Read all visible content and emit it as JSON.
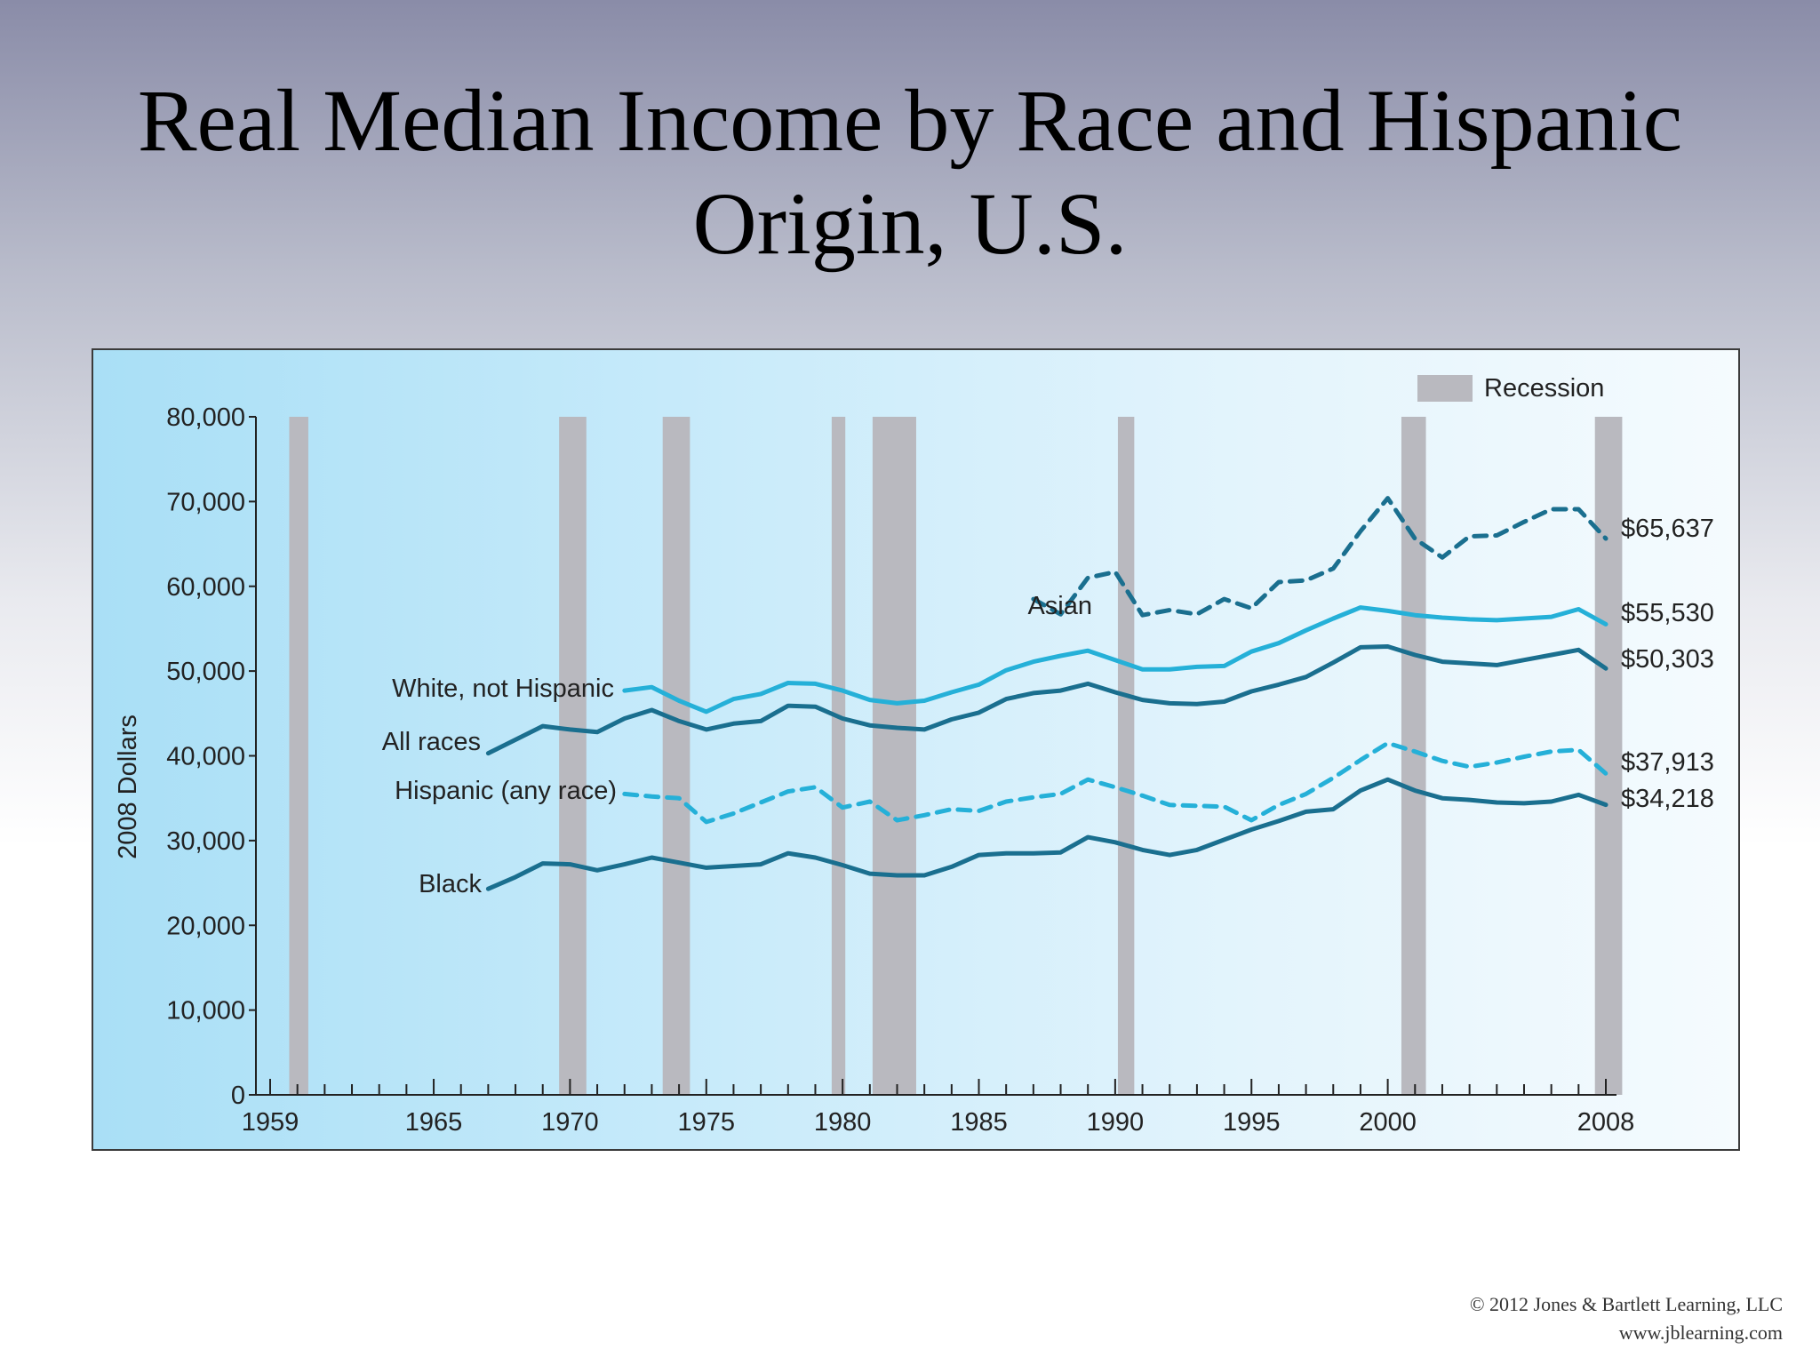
{
  "title": {
    "line1": "Real Median Income by Race and Hispanic",
    "line2": "Origin, U.S."
  },
  "footer": {
    "copyright": "© 2012 Jones & Bartlett Learning, LLC",
    "url": "www.jblearning.com"
  },
  "chart_data": {
    "type": "line",
    "title": "",
    "xlabel": "",
    "ylabel": "2008 Dollars",
    "xlim": [
      1959,
      2008
    ],
    "ylim": [
      0,
      80000
    ],
    "y_ticks": [
      0,
      10000,
      20000,
      30000,
      40000,
      50000,
      60000,
      70000,
      80000
    ],
    "y_tick_labels": [
      "0",
      "10,000",
      "20,000",
      "30,000",
      "40,000",
      "50,000",
      "60,000",
      "70,000",
      "80,000"
    ],
    "x_ticks": [
      1959,
      1965,
      1970,
      1975,
      1980,
      1985,
      1990,
      1995,
      2000,
      2008
    ],
    "x_tick_labels": [
      "1959",
      "1965",
      "1970",
      "1975",
      "1980",
      "1985",
      "1990",
      "1995",
      "2000",
      "2008"
    ],
    "grid": false,
    "legend": {
      "label": "Recession",
      "position": "top-right",
      "color": "#b9b9bf"
    },
    "recessions": [
      [
        1959.7,
        1960.4
      ],
      [
        1969.6,
        1970.6
      ],
      [
        1973.4,
        1974.4
      ],
      [
        1979.6,
        1980.1
      ],
      [
        1981.1,
        1982.7
      ],
      [
        1990.1,
        1990.7
      ],
      [
        2000.5,
        2001.4
      ],
      [
        2007.6,
        2008.6
      ]
    ],
    "series": [
      {
        "name": "Asian",
        "color": "#1a6f8f",
        "dash": true,
        "end_label": "$65,637",
        "x": [
          1987,
          1988,
          1989,
          1990,
          1991,
          1992,
          1993,
          1994,
          1995,
          1996,
          1997,
          1998,
          1999,
          2000,
          2001,
          2002,
          2003,
          2004,
          2005,
          2006,
          2007,
          2008
        ],
        "y": [
          58500,
          56700,
          61000,
          61700,
          56600,
          57200,
          56700,
          58500,
          57400,
          60500,
          60700,
          62100,
          66500,
          70400,
          65600,
          63400,
          65900,
          66000,
          67600,
          69100,
          69100,
          65637
        ]
      },
      {
        "name": "White, not Hispanic",
        "color": "#25b0d8",
        "dash": false,
        "end_label": "$55,530",
        "x": [
          1972,
          1973,
          1974,
          1975,
          1976,
          1977,
          1978,
          1979,
          1980,
          1981,
          1982,
          1983,
          1984,
          1985,
          1986,
          1987,
          1988,
          1989,
          1990,
          1991,
          1992,
          1993,
          1994,
          1995,
          1996,
          1997,
          1998,
          1999,
          2000,
          2001,
          2002,
          2003,
          2004,
          2005,
          2006,
          2007,
          2008
        ],
        "y": [
          47700,
          48100,
          46500,
          45200,
          46700,
          47300,
          48600,
          48500,
          47700,
          46600,
          46200,
          46500,
          47500,
          48400,
          50100,
          51100,
          51800,
          52400,
          51300,
          50200,
          50200,
          50500,
          50600,
          52300,
          53300,
          54800,
          56200,
          57500,
          57100,
          56600,
          56300,
          56100,
          56000,
          56200,
          56400,
          57300,
          55530
        ]
      },
      {
        "name": "All races",
        "color": "#1a6f8f",
        "dash": false,
        "end_label": "$50,303",
        "x": [
          1967,
          1968,
          1969,
          1970,
          1971,
          1972,
          1973,
          1974,
          1975,
          1976,
          1977,
          1978,
          1979,
          1980,
          1981,
          1982,
          1983,
          1984,
          1985,
          1986,
          1987,
          1988,
          1989,
          1990,
          1991,
          1992,
          1993,
          1994,
          1995,
          1996,
          1997,
          1998,
          1999,
          2000,
          2001,
          2002,
          2003,
          2004,
          2005,
          2006,
          2007,
          2008
        ],
        "y": [
          40300,
          41900,
          43500,
          43100,
          42800,
          44400,
          45400,
          44100,
          43100,
          43800,
          44100,
          45900,
          45800,
          44400,
          43600,
          43300,
          43100,
          44300,
          45100,
          46700,
          47400,
          47700,
          48500,
          47500,
          46600,
          46200,
          46100,
          46400,
          47600,
          48400,
          49300,
          51000,
          52800,
          52900,
          51900,
          51100,
          50900,
          50700,
          51300,
          51900,
          52500,
          50303
        ]
      },
      {
        "name": "Hispanic (any race)",
        "color": "#25b0d8",
        "dash": true,
        "end_label": "$37,913",
        "x": [
          1972,
          1973,
          1974,
          1975,
          1976,
          1977,
          1978,
          1979,
          1980,
          1981,
          1982,
          1983,
          1984,
          1985,
          1986,
          1987,
          1988,
          1989,
          1990,
          1991,
          1992,
          1993,
          1994,
          1995,
          1996,
          1997,
          1998,
          1999,
          2000,
          2001,
          2002,
          2003,
          2004,
          2005,
          2006,
          2007,
          2008
        ],
        "y": [
          35500,
          35200,
          35000,
          32200,
          33200,
          34500,
          35800,
          36300,
          33900,
          34600,
          32400,
          33000,
          33700,
          33500,
          34600,
          35100,
          35500,
          37200,
          36300,
          35300,
          34200,
          34100,
          34000,
          32400,
          34200,
          35500,
          37400,
          39500,
          41500,
          40500,
          39400,
          38700,
          39200,
          39900,
          40500,
          40700,
          37913
        ]
      },
      {
        "name": "Black",
        "color": "#1a6f8f",
        "dash": false,
        "end_label": "$34,218",
        "x": [
          1967,
          1968,
          1969,
          1970,
          1971,
          1972,
          1973,
          1974,
          1975,
          1976,
          1977,
          1978,
          1979,
          1980,
          1981,
          1982,
          1983,
          1984,
          1985,
          1986,
          1987,
          1988,
          1989,
          1990,
          1991,
          1992,
          1993,
          1994,
          1995,
          1996,
          1997,
          1998,
          1999,
          2000,
          2001,
          2002,
          2003,
          2004,
          2005,
          2006,
          2007,
          2008
        ],
        "y": [
          24300,
          25700,
          27300,
          27200,
          26500,
          27200,
          28000,
          27400,
          26800,
          27000,
          27200,
          28500,
          28000,
          27100,
          26100,
          25900,
          25900,
          26900,
          28300,
          28500,
          28500,
          28600,
          30400,
          29800,
          28900,
          28300,
          28900,
          30100,
          31300,
          32300,
          33400,
          33700,
          35900,
          37200,
          35900,
          35000,
          34800,
          34500,
          34400,
          34600,
          35400,
          34218
        ]
      }
    ],
    "annotations": [
      {
        "series": "Asian",
        "text": "Asian"
      },
      {
        "series": "White, not Hispanic",
        "text": "White, not Hispanic"
      },
      {
        "series": "All races",
        "text": "All races"
      },
      {
        "series": "Hispanic (any race)",
        "text": "Hispanic (any race)"
      },
      {
        "series": "Black",
        "text": "Black"
      }
    ]
  }
}
